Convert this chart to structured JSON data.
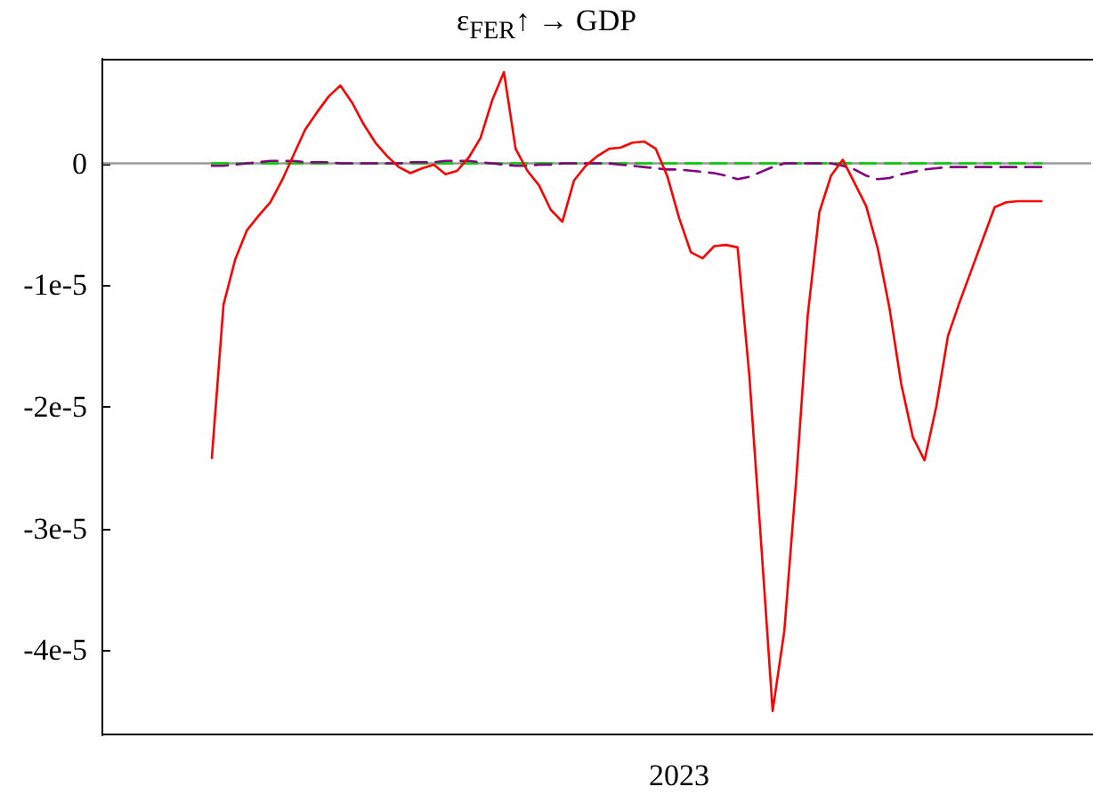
{
  "chart_data": {
    "type": "line",
    "title": "ε$_{FER}$↑ → GDP",
    "categories": [
      null,
      null,
      null,
      null,
      null,
      null,
      null,
      null,
      null,
      null,
      null,
      null,
      null,
      null,
      null,
      null,
      null,
      null,
      null,
      null,
      null,
      null,
      null,
      null,
      null,
      null,
      null,
      null,
      null,
      null,
      null,
      null,
      null,
      null,
      null,
      null,
      null,
      null,
      null,
      null,
      "2023",
      null,
      null,
      null,
      null,
      null,
      null,
      null,
      null,
      null,
      null,
      null,
      null,
      null,
      null,
      null,
      null,
      null,
      null,
      null,
      null,
      null,
      null,
      null,
      null,
      null,
      null,
      null,
      null,
      null,
      null,
      null
    ],
    "ylim": [
      -4.7e-05,
      8.6e-06
    ],
    "yticks": [
      {
        "value": -4e-05,
        "label": "-4e-5"
      },
      {
        "value": -3e-05,
        "label": "-3e-5"
      },
      {
        "value": -2e-05,
        "label": "-2e-5"
      },
      {
        "value": -1e-05,
        "label": "-1e-5"
      },
      0
    ],
    "grid": false,
    "marker": "none",
    "ref_lines": [
      {
        "axis": "y",
        "value": 0,
        "label": null,
        "color": "#999999"
      }
    ],
    "series": [
      {
        "color": "#ff0000",
        "line_style": "solid",
        "values": [
          -2.42e-05,
          -1.16e-05,
          -7.9e-06,
          -5.5e-06,
          -4.3e-06,
          -3.2e-06,
          -1.4e-06,
          7e-07,
          2.8e-06,
          4.2e-06,
          5.5e-06,
          6.4e-06,
          5e-06,
          3.2e-06,
          1.7e-06,
          6e-07,
          -3e-07,
          -8e-07,
          -4e-07,
          -1e-07,
          -9e-07,
          -6e-07,
          5e-07,
          2.1e-06,
          5.2e-06,
          7.5e-06,
          1.2e-06,
          -6e-07,
          -1.8e-06,
          -3.8e-06,
          -4.8e-06,
          -1.4e-06,
          -2e-07,
          6e-07,
          1.2e-06,
          1.3e-06,
          1.7e-06,
          1.8e-06,
          1.2e-06,
          -1.1e-06,
          -4.5e-06,
          -7.3e-06,
          -7.8e-06,
          -6.8e-06,
          -6.7e-06,
          -6.9e-06,
          -1.74e-05,
          -3.1e-05,
          -4.5e-05,
          -3.84e-05,
          -2.62e-05,
          -1.25e-05,
          -4e-06,
          -1e-06,
          3e-07,
          -1.6e-06,
          -3.5e-06,
          -7e-06,
          -1.19e-05,
          -1.81e-05,
          -2.25e-05,
          -2.44e-05,
          -2e-05,
          -1.42e-05,
          -1.14e-05,
          -8.8e-06,
          -6.2e-06,
          -3.6e-06,
          -3.2e-06,
          -3.1e-06,
          -3.1e-06,
          -3.1e-06
        ]
      },
      {
        "color": "#800080",
        "line_style": "dashed",
        "values": [
          -2e-07,
          -2e-07,
          -1e-07,
          0,
          1e-07,
          2e-07,
          2e-07,
          2e-07,
          1e-07,
          1e-07,
          1e-07,
          0,
          0,
          0,
          0,
          0,
          0,
          1e-07,
          1e-07,
          1e-07,
          2e-07,
          2e-07,
          2e-07,
          1e-07,
          0,
          -1e-07,
          -2e-07,
          -2e-07,
          -1e-07,
          -1e-07,
          0,
          0,
          0,
          0,
          0,
          -1e-07,
          -2e-07,
          -3e-07,
          -4e-07,
          -5e-07,
          -5e-07,
          -6e-07,
          -7e-07,
          -8e-07,
          -1e-06,
          -1.3e-06,
          -1.1e-06,
          -7e-07,
          -3e-07,
          0,
          0,
          0,
          0,
          0,
          -2e-07,
          -5e-07,
          -1e-06,
          -1.3e-06,
          -1.2e-06,
          -9e-07,
          -7e-07,
          -5e-07,
          -4e-07,
          -3e-07,
          -3e-07,
          -3e-07,
          -3e-07,
          -3e-07,
          -3e-07,
          -3e-07,
          -3e-07,
          -3e-07
        ]
      },
      {
        "color": "#00cc00",
        "line_style": "dashed",
        "values": [
          0,
          0,
          0,
          0,
          0,
          0,
          0,
          0,
          0,
          0,
          0,
          0,
          0,
          0,
          0,
          0,
          0,
          0,
          0,
          0,
          0,
          0,
          0,
          0,
          0,
          0,
          0,
          0,
          0,
          0,
          0,
          0,
          0,
          0,
          0,
          0,
          0,
          0,
          0,
          0,
          0,
          0,
          0,
          0,
          0,
          0,
          0,
          0,
          0,
          0,
          0,
          0,
          0,
          0,
          0,
          0,
          0,
          0,
          0,
          0,
          0,
          0,
          0,
          0,
          0,
          0,
          0,
          0,
          0,
          0,
          0,
          0
        ]
      }
    ]
  }
}
